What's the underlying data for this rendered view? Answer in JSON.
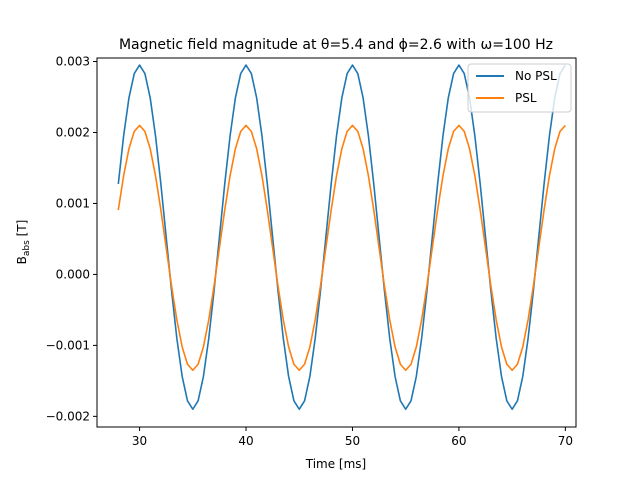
{
  "chart_data": {
    "type": "line",
    "title": "Magnetic field magnitude at θ=5.4 and ϕ=2.6 with ω=100 Hz",
    "xlabel": "Time [ms]",
    "ylabel_main": "B",
    "ylabel_sub": "abs",
    "ylabel_unit": " [T]",
    "xlim": [
      26,
      71
    ],
    "ylim": [
      -0.00215,
      0.00305
    ],
    "xticks": [
      30,
      40,
      50,
      60,
      70
    ],
    "xtick_labels": [
      "30",
      "40",
      "50",
      "60",
      "70"
    ],
    "yticks": [
      -0.002,
      -0.001,
      0.0,
      0.001,
      0.002,
      0.003
    ],
    "ytick_labels": [
      "−0.002",
      "−0.001",
      "0.000",
      "0.001",
      "0.002",
      "0.003"
    ],
    "grid": false,
    "legend_position": "top-right",
    "x_range": [
      28,
      70
    ],
    "x_step": 0.5,
    "series": [
      {
        "name": "No PSL",
        "color": "#1f77b4",
        "function": "0.000525 + 0.002425*sin(2*pi*100*(t-27.5)/1000)",
        "offset": 0.000525,
        "amplitude": 0.002425,
        "frequency_hz": 100,
        "phase_ms": 27.5
      },
      {
        "name": "PSL",
        "color": "#ff7f0e",
        "function": "0.000375 + 0.001725*sin(2*pi*100*(t-27.5)/1000)",
        "offset": 0.000375,
        "amplitude": 0.001725,
        "frequency_hz": 100,
        "phase_ms": 27.5
      }
    ]
  }
}
